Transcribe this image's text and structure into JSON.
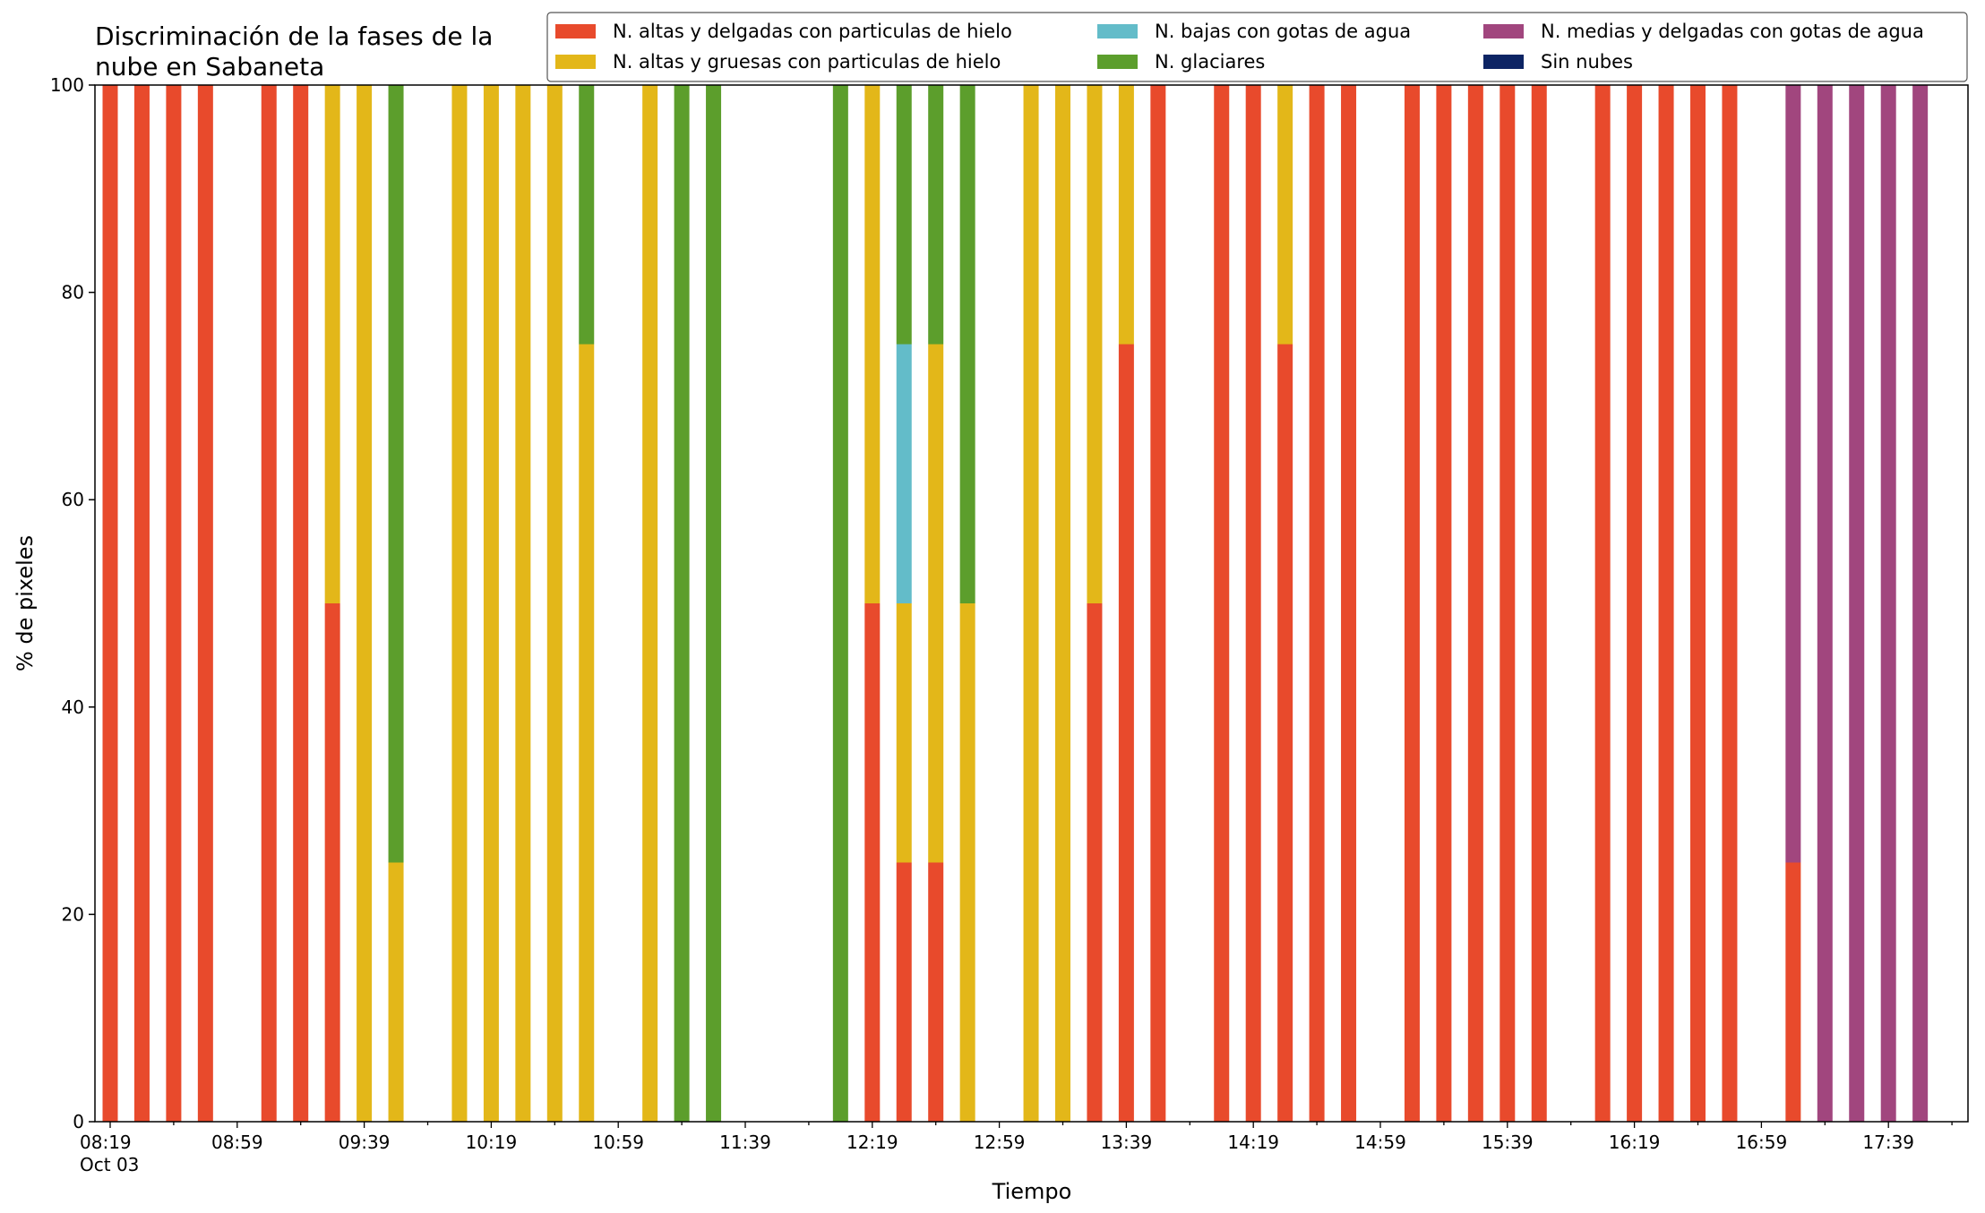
{
  "chart_data": {
    "type": "bar",
    "stacked": true,
    "title": "Discriminación de la fases de la nube en Sabaneta",
    "title_lines": [
      "Discriminación de la fases de la",
      "nube en Sabaneta"
    ],
    "xlabel": "Tiempo",
    "ylabel": "% de pixeles",
    "ylim": [
      0,
      100
    ],
    "yticks": [
      0,
      20,
      40,
      60,
      80,
      100
    ],
    "x_start": "08:19",
    "x_step_minutes": 10,
    "x_count": 59,
    "xticks": [
      {
        "label": "08:19",
        "sub": "Oct 03"
      },
      {
        "label": "08:59"
      },
      {
        "label": "09:39"
      },
      {
        "label": "10:19"
      },
      {
        "label": "10:59"
      },
      {
        "label": "11:39"
      },
      {
        "label": "12:19"
      },
      {
        "label": "12:59"
      },
      {
        "label": "13:39"
      },
      {
        "label": "14:19"
      },
      {
        "label": "14:59"
      },
      {
        "label": "15:39"
      },
      {
        "label": "16:19"
      },
      {
        "label": "16:59"
      },
      {
        "label": "17:39"
      }
    ],
    "legend_position": "top-right",
    "series": [
      {
        "key": "thin_ice",
        "name": "N. altas y delgadas con particulas de hielo",
        "color": "#e84a2c"
      },
      {
        "key": "thick_ice",
        "name": "N. altas y gruesas con particulas de hielo",
        "color": "#e3b719"
      },
      {
        "key": "low_water",
        "name": "N. bajas con gotas de agua",
        "color": "#63bcc9"
      },
      {
        "key": "glacier",
        "name": "N. glaciares",
        "color": "#5c9e2c"
      },
      {
        "key": "mid_water",
        "name": "N. medias y delgadas con gotas de agua",
        "color": "#a1467e"
      },
      {
        "key": "clear",
        "name": "Sin nubes",
        "color": "#0d2464"
      }
    ],
    "legend_order": [
      "thin_ice",
      "thick_ice",
      "low_water",
      "glacier",
      "mid_water",
      "clear"
    ],
    "bars": [
      {
        "i": 0,
        "time": "08:19",
        "thin_ice": 100
      },
      {
        "i": 1,
        "time": "08:29",
        "thin_ice": 100
      },
      {
        "i": 2,
        "time": "08:39",
        "thin_ice": 100
      },
      {
        "i": 3,
        "time": "08:49",
        "thin_ice": 100
      },
      {
        "i": 5,
        "time": "09:09",
        "thin_ice": 100
      },
      {
        "i": 6,
        "time": "09:19",
        "thin_ice": 100
      },
      {
        "i": 7,
        "time": "09:29",
        "thin_ice": 50,
        "thick_ice": 50
      },
      {
        "i": 8,
        "time": "09:39",
        "thick_ice": 100
      },
      {
        "i": 9,
        "time": "09:49",
        "thick_ice": 25,
        "glacier": 75
      },
      {
        "i": 11,
        "time": "10:09",
        "thick_ice": 100
      },
      {
        "i": 12,
        "time": "10:19",
        "thick_ice": 100
      },
      {
        "i": 13,
        "time": "10:29",
        "thick_ice": 100
      },
      {
        "i": 14,
        "time": "10:39",
        "thick_ice": 100
      },
      {
        "i": 15,
        "time": "10:49",
        "thick_ice": 75,
        "glacier": 25
      },
      {
        "i": 17,
        "time": "11:09",
        "thick_ice": 100
      },
      {
        "i": 18,
        "time": "11:19",
        "glacier": 100
      },
      {
        "i": 19,
        "time": "11:29",
        "glacier": 100
      },
      {
        "i": 23,
        "time": "12:09",
        "glacier": 100
      },
      {
        "i": 24,
        "time": "12:19",
        "thin_ice": 50,
        "thick_ice": 50
      },
      {
        "i": 25,
        "time": "12:29",
        "thin_ice": 25,
        "thick_ice": 25,
        "low_water": 25,
        "glacier": 25
      },
      {
        "i": 26,
        "time": "12:39",
        "thin_ice": 25,
        "thick_ice": 50,
        "glacier": 25
      },
      {
        "i": 27,
        "time": "12:49",
        "thick_ice": 50,
        "glacier": 50
      },
      {
        "i": 29,
        "time": "13:09",
        "thick_ice": 100
      },
      {
        "i": 30,
        "time": "13:19",
        "thick_ice": 100
      },
      {
        "i": 31,
        "time": "13:29",
        "thin_ice": 50,
        "thick_ice": 50
      },
      {
        "i": 32,
        "time": "13:39",
        "thin_ice": 75,
        "thick_ice": 25
      },
      {
        "i": 33,
        "time": "13:49",
        "thin_ice": 100
      },
      {
        "i": 35,
        "time": "14:09",
        "thin_ice": 100
      },
      {
        "i": 36,
        "time": "14:19",
        "thin_ice": 100
      },
      {
        "i": 37,
        "time": "14:29",
        "thin_ice": 75,
        "thick_ice": 25
      },
      {
        "i": 38,
        "time": "14:39",
        "thin_ice": 100
      },
      {
        "i": 39,
        "time": "14:49",
        "thin_ice": 100
      },
      {
        "i": 41,
        "time": "15:09",
        "thin_ice": 100
      },
      {
        "i": 42,
        "time": "15:19",
        "thin_ice": 100
      },
      {
        "i": 43,
        "time": "15:29",
        "thin_ice": 100
      },
      {
        "i": 44,
        "time": "15:39",
        "thin_ice": 100
      },
      {
        "i": 45,
        "time": "15:49",
        "thin_ice": 100
      },
      {
        "i": 47,
        "time": "16:09",
        "thin_ice": 100
      },
      {
        "i": 48,
        "time": "16:19",
        "thin_ice": 100
      },
      {
        "i": 49,
        "time": "16:29",
        "thin_ice": 100
      },
      {
        "i": 50,
        "time": "16:39",
        "thin_ice": 100
      },
      {
        "i": 51,
        "time": "16:49",
        "thin_ice": 100
      },
      {
        "i": 53,
        "time": "17:09",
        "thin_ice": 25,
        "mid_water": 75
      },
      {
        "i": 54,
        "time": "17:19",
        "mid_water": 100
      },
      {
        "i": 55,
        "time": "17:29",
        "mid_water": 100
      },
      {
        "i": 56,
        "time": "17:39",
        "mid_water": 100
      },
      {
        "i": 57,
        "time": "17:49",
        "mid_water": 100
      }
    ]
  }
}
